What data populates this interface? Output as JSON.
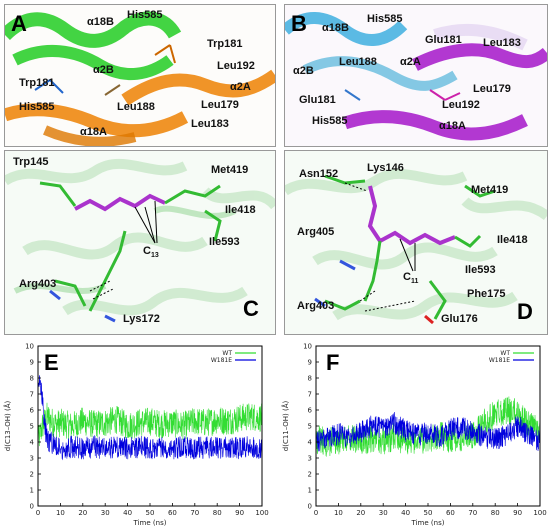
{
  "panels": {
    "A": {
      "letter": "A",
      "labels": [
        "α18B",
        "His585",
        "Trp181",
        "Leu192",
        "α2B",
        "α2A",
        "Trp181",
        "His585",
        "Leu188",
        "Leu179",
        "α18A",
        "Leu183"
      ]
    },
    "B": {
      "letter": "B",
      "labels": [
        "α18B",
        "His585",
        "Glu181",
        "Leu183",
        "Leu188",
        "α2A",
        "α2B",
        "Leu179",
        "Glu181",
        "Leu192",
        "His585",
        "α18A"
      ]
    },
    "C": {
      "letter": "C",
      "labels": [
        "Trp145",
        "Met419",
        "Ile418",
        "Ile593",
        "Arg403",
        "Lys172"
      ],
      "carbon_label": "C",
      "carbon_sub": "13"
    },
    "D": {
      "letter": "D",
      "labels": [
        "Asn152",
        "Lys146",
        "Met419",
        "Arg405",
        "Ile418",
        "Ile593",
        "Phe175",
        "Arg403",
        "Glu176"
      ],
      "carbon_label": "C",
      "carbon_sub": "11"
    }
  },
  "chart_data": [
    {
      "panel": "E",
      "type": "line",
      "xlabel": "Time (ns)",
      "ylabel": "d(C13–OH) (Å)",
      "xlim": [
        0,
        100
      ],
      "ylim": [
        0,
        10
      ],
      "xticks": [
        0,
        10,
        20,
        30,
        40,
        50,
        60,
        70,
        80,
        90,
        100
      ],
      "yticks": [
        0,
        1,
        2,
        3,
        4,
        5,
        6,
        7,
        8,
        9,
        10
      ],
      "legend": "top-right",
      "series": [
        {
          "name": "WT",
          "color": "#33dd33",
          "x": [
            0,
            2,
            4,
            6,
            8,
            10,
            15,
            20,
            25,
            30,
            35,
            40,
            45,
            50,
            55,
            60,
            65,
            70,
            75,
            80,
            85,
            90,
            95,
            100
          ],
          "y": [
            4.0,
            5.0,
            5.6,
            5.3,
            5.1,
            5.2,
            5.0,
            5.3,
            5.1,
            5.2,
            5.4,
            5.0,
            5.2,
            5.3,
            5.1,
            5.2,
            5.0,
            5.3,
            5.2,
            5.4,
            5.3,
            5.5,
            5.6,
            5.5
          ]
        },
        {
          "name": "W181E",
          "color": "#0000dd",
          "x": [
            0,
            1,
            2,
            3,
            4,
            5,
            6,
            7,
            8,
            10,
            15,
            20,
            25,
            30,
            35,
            40,
            45,
            50,
            55,
            60,
            65,
            70,
            75,
            80,
            85,
            90,
            95,
            100
          ],
          "y": [
            7.0,
            8.1,
            6.5,
            5.0,
            4.3,
            4.0,
            3.9,
            3.8,
            3.7,
            3.6,
            3.7,
            3.6,
            3.7,
            3.6,
            3.7,
            3.6,
            3.7,
            3.6,
            3.7,
            3.6,
            3.7,
            3.6,
            3.7,
            3.6,
            3.7,
            3.6,
            3.7,
            3.6
          ]
        }
      ]
    },
    {
      "panel": "F",
      "type": "line",
      "xlabel": "Time (ns)",
      "ylabel": "d(C11–OH) (Å)",
      "xlim": [
        0,
        100
      ],
      "ylim": [
        0,
        10
      ],
      "xticks": [
        0,
        10,
        20,
        30,
        40,
        50,
        60,
        70,
        80,
        90,
        100
      ],
      "yticks": [
        0,
        1,
        2,
        3,
        4,
        5,
        6,
        7,
        8,
        9,
        10
      ],
      "legend": "top-right",
      "series": [
        {
          "name": "WT",
          "color": "#33dd33",
          "x": [
            0,
            5,
            10,
            15,
            20,
            25,
            30,
            35,
            40,
            45,
            50,
            55,
            60,
            65,
            70,
            75,
            80,
            85,
            90,
            95,
            100
          ],
          "y": [
            4.2,
            4.0,
            4.1,
            4.3,
            4.0,
            4.2,
            4.1,
            4.3,
            4.0,
            4.2,
            4.1,
            4.4,
            4.2,
            4.3,
            4.5,
            5.2,
            5.8,
            6.0,
            5.8,
            5.0,
            4.8
          ]
        },
        {
          "name": "W181E",
          "color": "#0000dd",
          "x": [
            0,
            5,
            10,
            15,
            20,
            25,
            30,
            35,
            40,
            45,
            50,
            55,
            60,
            65,
            70,
            75,
            80,
            85,
            90,
            95,
            100
          ],
          "y": [
            4.0,
            4.2,
            4.5,
            4.3,
            4.6,
            5.0,
            4.8,
            5.2,
            4.7,
            4.4,
            4.6,
            4.3,
            4.8,
            4.9,
            4.7,
            4.3,
            4.2,
            4.4,
            5.0,
            4.5,
            4.0
          ]
        }
      ]
    }
  ]
}
